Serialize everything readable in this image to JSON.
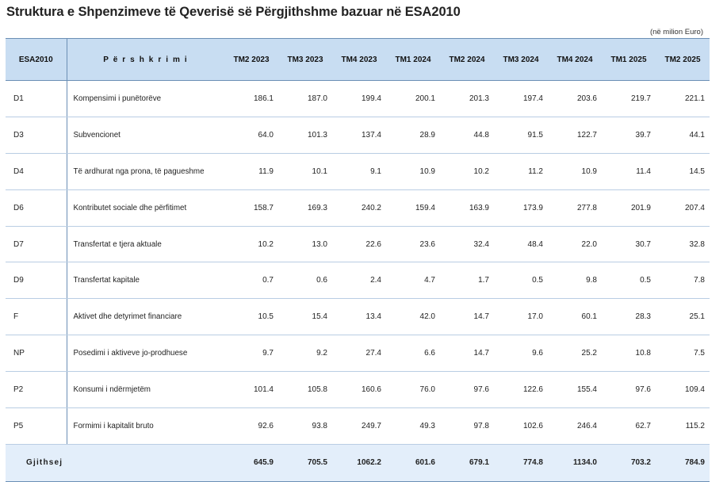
{
  "title": "Struktura e Shpenzimeve të Qeverisë së Përgjithshme bazuar në ESA2010",
  "unit": "(në milion Euro)",
  "headers": {
    "code": "ESA2010",
    "description": "P ë r s h k r i m i",
    "periods": [
      "TM2 2023",
      "TM3 2023",
      "TM4 2023",
      "TM1 2024",
      "TM2 2024",
      "TM3 2024",
      "TM4 2024",
      "TM1 2025",
      "TM2 2025"
    ]
  },
  "rows": [
    {
      "code": "D1",
      "description": "Kompensimi i punëtorëve",
      "values": [
        "186.1",
        "187.0",
        "199.4",
        "200.1",
        "201.3",
        "197.4",
        "203.6",
        "219.7",
        "221.1"
      ]
    },
    {
      "code": "D3",
      "description": "Subvencionet",
      "values": [
        "64.0",
        "101.3",
        "137.4",
        "28.9",
        "44.8",
        "91.5",
        "122.7",
        "39.7",
        "44.1"
      ]
    },
    {
      "code": "D4",
      "description": "Të ardhurat nga prona, të pagueshme",
      "values": [
        "11.9",
        "10.1",
        "9.1",
        "10.9",
        "10.2",
        "11.2",
        "10.9",
        "11.4",
        "14.5"
      ]
    },
    {
      "code": "D6",
      "description": "Kontributet sociale dhe përfitimet",
      "values": [
        "158.7",
        "169.3",
        "240.2",
        "159.4",
        "163.9",
        "173.9",
        "277.8",
        "201.9",
        "207.4"
      ]
    },
    {
      "code": "D7",
      "description": "Transfertat e tjera aktuale",
      "values": [
        "10.2",
        "13.0",
        "22.6",
        "23.6",
        "32.4",
        "48.4",
        "22.0",
        "30.7",
        "32.8"
      ]
    },
    {
      "code": "D9",
      "description": "Transfertat kapitale",
      "values": [
        "0.7",
        "0.6",
        "2.4",
        "4.7",
        "1.7",
        "0.5",
        "9.8",
        "0.5",
        "7.8"
      ]
    },
    {
      "code": "F",
      "description": "Aktivet dhe detyrimet financiare",
      "values": [
        "10.5",
        "15.4",
        "13.4",
        "42.0",
        "14.7",
        "17.0",
        "60.1",
        "28.3",
        "25.1"
      ]
    },
    {
      "code": "NP",
      "description": "Posedimi i aktiveve jo-prodhuese",
      "values": [
        "9.7",
        "9.2",
        "27.4",
        "6.6",
        "14.7",
        "9.6",
        "25.2",
        "10.8",
        "7.5"
      ]
    },
    {
      "code": "P2",
      "description": "Konsumi i ndërmjetëm",
      "values": [
        "101.4",
        "105.8",
        "160.6",
        "76.0",
        "97.6",
        "122.6",
        "155.4",
        "97.6",
        "109.4"
      ]
    },
    {
      "code": "P5",
      "description": "Formimi i kapitalit bruto",
      "values": [
        "92.6",
        "93.8",
        "249.7",
        "49.3",
        "97.8",
        "102.6",
        "246.4",
        "62.7",
        "115.2"
      ]
    }
  ],
  "total": {
    "label": "Gjithsej",
    "values": [
      "645.9",
      "705.5",
      "1062.2",
      "601.6",
      "679.1",
      "774.8",
      "1134.0",
      "703.2",
      "784.9"
    ]
  }
}
